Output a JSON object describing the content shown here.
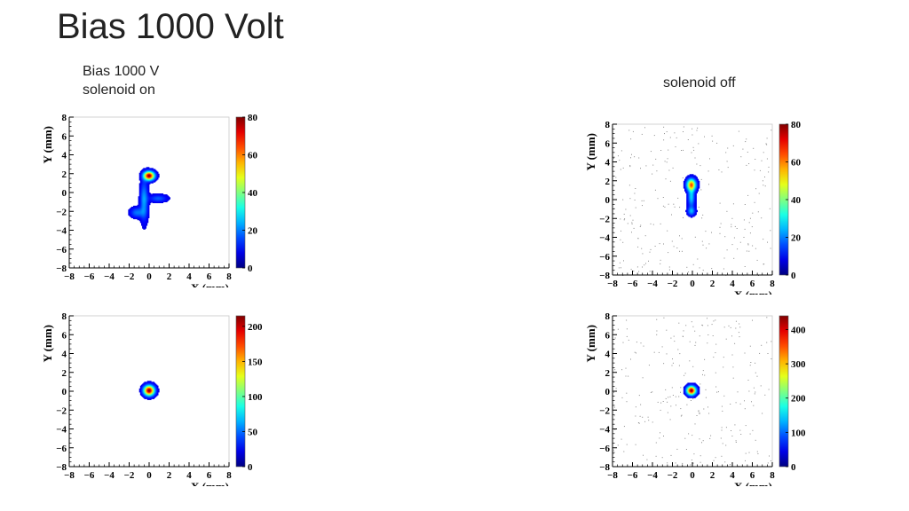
{
  "slide": {
    "title": "Bias 1000 Volt",
    "caption_left_line1": "Bias 1000 V",
    "caption_left_line2": "solenoid on",
    "caption_right": "solenoid off"
  },
  "chart_data": [
    {
      "id": "top-left",
      "type": "heatmap",
      "xlabel": "X (mm)",
      "ylabel": "Y (mm)",
      "xlim": [
        -8,
        8
      ],
      "ylim": [
        -8,
        8
      ],
      "xticks": [
        "−8",
        "−6",
        "−4",
        "−2",
        "0",
        "2",
        "4",
        "6",
        "8"
      ],
      "yticks": [
        "−8",
        "−6",
        "−4",
        "−2",
        "0",
        "2",
        "4",
        "6",
        "8"
      ],
      "zlim": [
        0,
        80
      ],
      "zticks": [
        "0",
        "20",
        "40",
        "60",
        "80"
      ],
      "zticks_values": [
        0,
        20,
        40,
        60,
        80
      ],
      "peak_z": 80,
      "spots": [
        {
          "x": 0.0,
          "y": 1.8,
          "sx": 0.35,
          "sy": 0.3,
          "peak": 80
        },
        {
          "x": -0.5,
          "y": -0.8,
          "sx": 0.25,
          "sy": 1.4,
          "peak": 18
        },
        {
          "x": -1.2,
          "y": -2.1,
          "sx": 0.45,
          "sy": 0.35,
          "peak": 14
        },
        {
          "x": 0.9,
          "y": -0.6,
          "sx": 0.6,
          "sy": 0.25,
          "peak": 12
        }
      ],
      "noise": false
    },
    {
      "id": "top-right",
      "type": "heatmap",
      "xlabel": "X (mm)",
      "ylabel": "Y (mm)",
      "xlim": [
        -8,
        8
      ],
      "ylim": [
        -8,
        8
      ],
      "xticks": [
        "−8",
        "−6",
        "−4",
        "−2",
        "0",
        "2",
        "4",
        "6",
        "8"
      ],
      "yticks": [
        "−8",
        "−6",
        "−4",
        "−2",
        "0",
        "2",
        "4",
        "6",
        "8"
      ],
      "zlim": [
        0,
        80
      ],
      "zticks": [
        "0",
        "20",
        "40",
        "60",
        "80"
      ],
      "zticks_values": [
        0,
        20,
        40,
        60,
        80
      ],
      "peak_z": 80,
      "spots": [
        {
          "x": -0.1,
          "y": 1.6,
          "sx": 0.3,
          "sy": 0.4,
          "peak": 60
        },
        {
          "x": -0.1,
          "y": 0.3,
          "sx": 0.22,
          "sy": 0.7,
          "peak": 22
        },
        {
          "x": -0.1,
          "y": -1.2,
          "sx": 0.25,
          "sy": 0.3,
          "peak": 18
        }
      ],
      "noise": true
    },
    {
      "id": "bottom-left",
      "type": "heatmap",
      "xlabel": "X (mm)",
      "ylabel": "Y (mm)",
      "xlim": [
        -8,
        8
      ],
      "ylim": [
        -8,
        8
      ],
      "xticks": [
        "−8",
        "−6",
        "−4",
        "−2",
        "0",
        "2",
        "4",
        "6",
        "8"
      ],
      "yticks": [
        "−8",
        "−6",
        "−4",
        "−2",
        "0",
        "2",
        "4",
        "6",
        "8"
      ],
      "zlim": [
        0,
        215
      ],
      "zticks": [
        "0",
        "50",
        "100",
        "150",
        "200"
      ],
      "zticks_values": [
        0,
        50,
        100,
        150,
        200
      ],
      "peak_z": 215,
      "spots": [
        {
          "x": 0.0,
          "y": 0.1,
          "sx": 0.35,
          "sy": 0.35,
          "peak": 215
        }
      ],
      "noise": false
    },
    {
      "id": "bottom-right",
      "type": "heatmap",
      "xlabel": "X (mm)",
      "ylabel": "Y (mm)",
      "xlim": [
        -8,
        8
      ],
      "ylim": [
        -8,
        8
      ],
      "xticks": [
        "−8",
        "−6",
        "−4",
        "−2",
        "0",
        "2",
        "4",
        "6",
        "8"
      ],
      "yticks": [
        "−8",
        "−6",
        "−4",
        "−2",
        "0",
        "2",
        "4",
        "6",
        "8"
      ],
      "zlim": [
        0,
        440
      ],
      "zticks": [
        "0",
        "100",
        "200",
        "300",
        "400"
      ],
      "zticks_values": [
        0,
        100,
        200,
        300,
        400
      ],
      "peak_z": 440,
      "spots": [
        {
          "x": -0.1,
          "y": 0.1,
          "sx": 0.3,
          "sy": 0.3,
          "peak": 440
        }
      ],
      "noise": true
    }
  ]
}
